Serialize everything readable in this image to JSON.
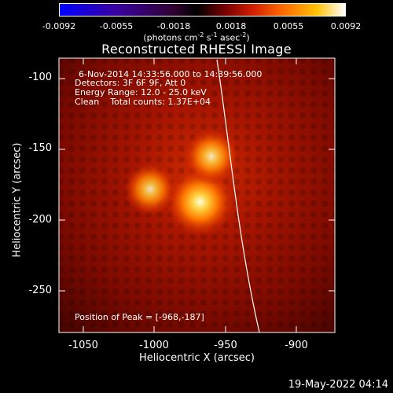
{
  "colorbar": {
    "ticks": [
      "-0.0092",
      "-0.0055",
      "-0.0018",
      "0.0018",
      "0.0055",
      "0.0092"
    ],
    "units_label": "(photons cm",
    "units_exp1": "-2",
    "units_mid": " s",
    "units_exp2": "-1",
    "units_mid2": " asec",
    "units_exp3": "-2",
    "units_end": ")"
  },
  "title": "Reconstructed RHESSI Image",
  "annotations": {
    "time_range": "6-Nov-2014 14:33:56.000 to 14:39:56.000",
    "detectors": "Detectors: 3F 6F 9F, Att 0",
    "energy_range": "Energy Range: 12.0 - 25.0 keV",
    "clean": "Clean    Total counts: 1.37E+04",
    "peak_position": "Position of Peak = [-968,-187]"
  },
  "axes": {
    "xlabel": "Heliocentric X (arcsec)",
    "ylabel": "Heliocentric Y (arcsec)",
    "xticks": [
      "-1050",
      "-1000",
      "-950",
      "-900"
    ],
    "yticks": [
      "-100",
      "-150",
      "-200",
      "-250"
    ]
  },
  "sources": [
    {
      "x": -968,
      "y": -187,
      "intensity": 1.0
    },
    {
      "x": -960,
      "y": -155,
      "intensity": 0.72
    },
    {
      "x": -1003,
      "y": -178,
      "intensity": 0.66
    }
  ],
  "colors": {
    "limb": "#ffffff",
    "background": "#000000"
  },
  "datestamp": "19-May-2022 04:14"
}
